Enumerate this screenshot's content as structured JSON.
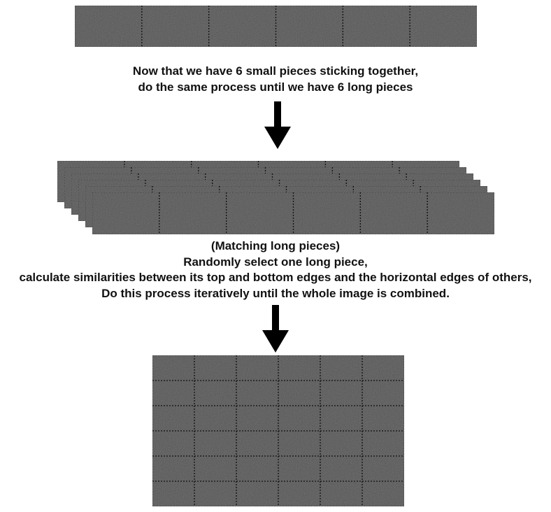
{
  "colors": {
    "tile": "#555555",
    "tile_edge": "#2a2a2a",
    "seam": "#111111",
    "arrow": "#000000"
  },
  "stage1": {
    "pieces": 6,
    "caption_lines": [
      "Now that we have 6 small pieces sticking together,",
      "do the same process until we have 6 long pieces"
    ]
  },
  "stage2": {
    "long_pieces": 6,
    "pieces_per_long_piece": 6,
    "caption_lines": [
      "(Matching long pieces)",
      "Randomly select one long piece,",
      "calculate similarities between its top and bottom edges and the horizontal edges of others,",
      "Do this process iteratively until the whole image is combined."
    ]
  },
  "stage3": {
    "rows": 6,
    "cols": 6
  },
  "arrows": [
    {
      "name": "arrow-stage1-to-stage2"
    },
    {
      "name": "arrow-stage2-to-stage3"
    }
  ]
}
